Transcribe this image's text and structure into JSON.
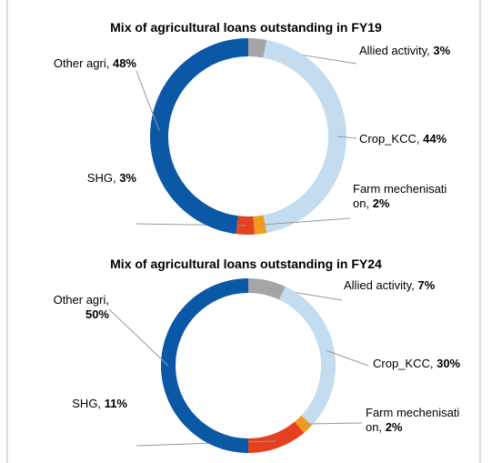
{
  "chart_data": [
    {
      "type": "donut",
      "title": "Mix of agricultural loans outstanding in FY19",
      "categories": [
        "Allied activity,",
        "Crop_KCC,",
        "Farm mechenisati on,",
        "SHG,",
        "Other agri,"
      ],
      "values": [
        3,
        44,
        2,
        3,
        48
      ],
      "value_labels": [
        "3%",
        "44%",
        "2%",
        "3%",
        "48%"
      ],
      "colors": [
        "#a5a5a5",
        "#c3dcf0",
        "#f39a1e",
        "#e5401f",
        "#0b58a6"
      ]
    },
    {
      "type": "donut",
      "title": "Mix of agricultural loans outstanding in FY24",
      "categories": [
        "Allied activity,",
        "Crop_KCC,",
        "Farm mechenisati on,",
        "SHG,",
        "Other agri,"
      ],
      "values": [
        7,
        30,
        2,
        11,
        50
      ],
      "value_labels": [
        "7%",
        "30%",
        "2%",
        "11%",
        "50%"
      ],
      "colors": [
        "#a5a5a5",
        "#c3dcf0",
        "#f39a1e",
        "#e5401f",
        "#0b58a6"
      ]
    }
  ]
}
